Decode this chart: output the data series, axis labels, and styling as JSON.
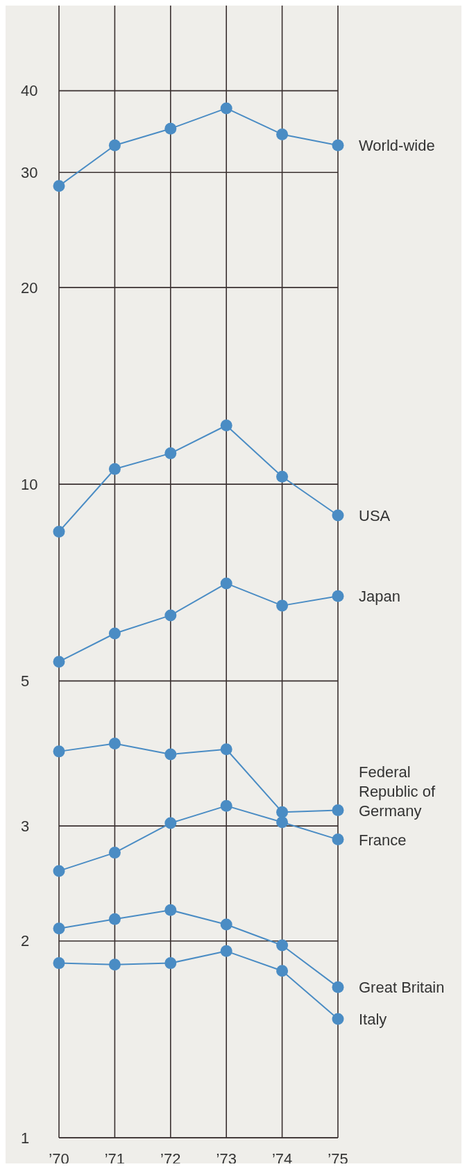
{
  "chart_data": {
    "type": "line",
    "categories": [
      "’70",
      "’71",
      "’72",
      "’73",
      "’74",
      "’75"
    ],
    "log": "y",
    "ylim": [
      1,
      54
    ],
    "yticks": [
      1,
      2,
      3,
      5,
      10,
      20,
      30,
      40
    ],
    "grid": true,
    "marker": "circle",
    "line_style": "solid",
    "series": [
      {
        "name": "World-wide",
        "color": "#4a8cc4",
        "values": [
          28.6,
          33.0,
          35.0,
          37.6,
          34.3,
          33.0
        ]
      },
      {
        "name": "USA",
        "color": "#4a8cc4",
        "values": [
          8.46,
          10.55,
          11.15,
          12.3,
          10.27,
          8.96
        ]
      },
      {
        "name": "Japan",
        "color": "#4a8cc4",
        "values": [
          5.35,
          5.91,
          6.3,
          7.05,
          6.52,
          6.74
        ]
      },
      {
        "name": "Federal Republic of Germany",
        "color": "#4a8cc4",
        "values": [
          3.9,
          4.01,
          3.86,
          3.93,
          3.15,
          3.17
        ]
      },
      {
        "name": "France",
        "color": "#4a8cc4",
        "values": [
          2.56,
          2.73,
          3.03,
          3.22,
          3.04,
          2.86
        ]
      },
      {
        "name": "Great Britain",
        "color": "#4a8cc4",
        "values": [
          2.09,
          2.16,
          2.23,
          2.12,
          1.97,
          1.7
        ]
      },
      {
        "name": "Italy",
        "color": "#4a8cc4",
        "values": [
          1.85,
          1.84,
          1.85,
          1.93,
          1.8,
          1.52
        ]
      }
    ]
  }
}
